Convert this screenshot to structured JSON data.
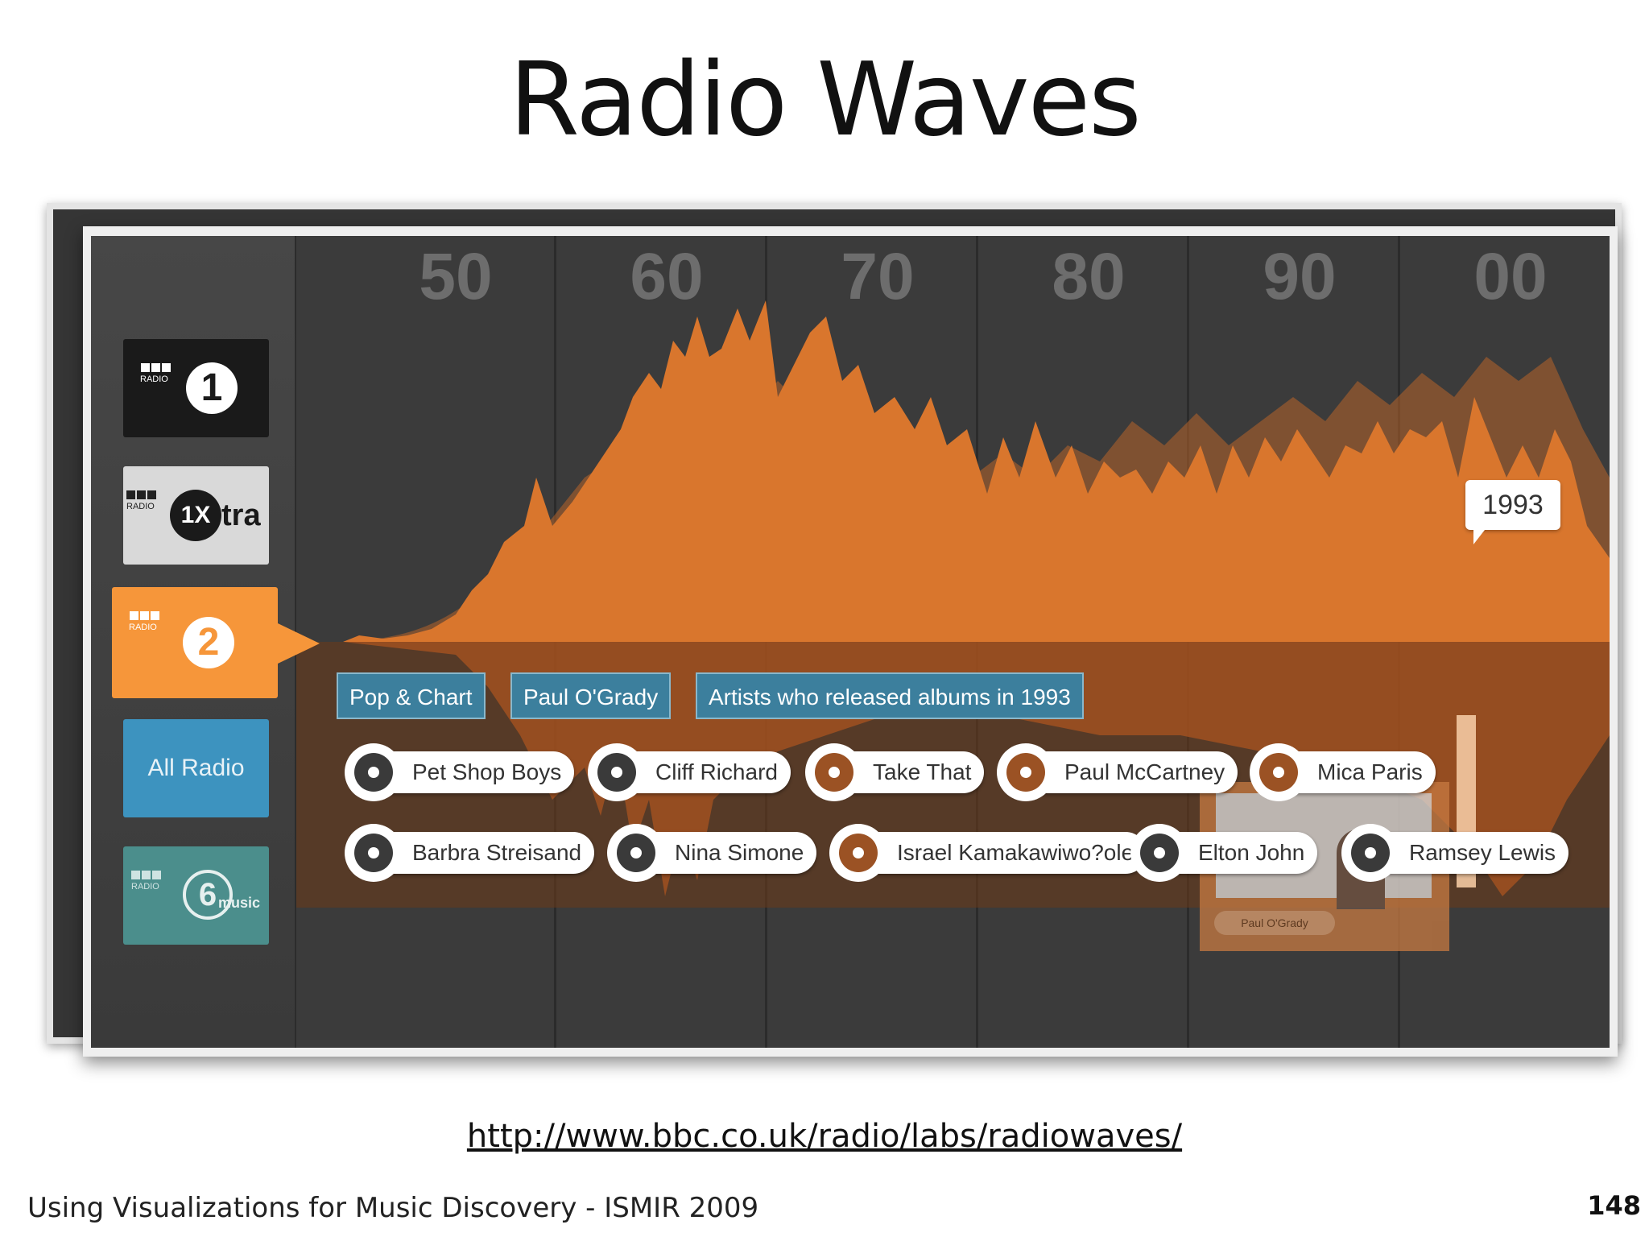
{
  "slide": {
    "title": "Radio Waves",
    "url": "http://www.bbc.co.uk/radio/labs/radiowaves/",
    "footer": "Using Visualizations for Music Discovery - ISMIR 2009",
    "page_number": "148"
  },
  "sidebar": {
    "stations": [
      {
        "name": "Radio 1",
        "badge": "1",
        "word": "RADIO",
        "color": "#1a1a1a",
        "selected": false
      },
      {
        "name": "1Xtra",
        "badge": "1X",
        "suffix": "tra",
        "word": "RADIO",
        "color": "#d9d9d9",
        "selected": false
      },
      {
        "name": "Radio 2",
        "badge": "2",
        "word": "RADIO",
        "color": "#f6963a",
        "selected": true
      },
      {
        "name": "All Radio",
        "label": "All Radio",
        "color": "#3d93bf",
        "selected": false
      },
      {
        "name": "6 Music",
        "badge": "6",
        "suffix": "music",
        "word": "RADIO",
        "color": "#4b8e8c",
        "selected": false
      }
    ]
  },
  "timeline": {
    "decades": [
      "50",
      "60",
      "70",
      "80",
      "90",
      "00"
    ],
    "selected_year": "1993",
    "wave_color": "#d9762d"
  },
  "filters": [
    {
      "label": "Pop & Chart"
    },
    {
      "label": "Paul O'Grady"
    },
    {
      "label": "Artists who released albums in 1993"
    }
  ],
  "artists": [
    {
      "name": "Pet Shop Boys"
    },
    {
      "name": "Cliff Richard"
    },
    {
      "name": "Take That"
    },
    {
      "name": "Paul McCartney"
    },
    {
      "name": "Mica Paris"
    },
    {
      "name": "Barbra Streisand"
    },
    {
      "name": "Nina Simone"
    },
    {
      "name": "Israel Kamakawiwo?ole"
    },
    {
      "name": "Elton John"
    },
    {
      "name": "Ramsey Lewis"
    }
  ],
  "photo_caption": "Paul O'Grady"
}
